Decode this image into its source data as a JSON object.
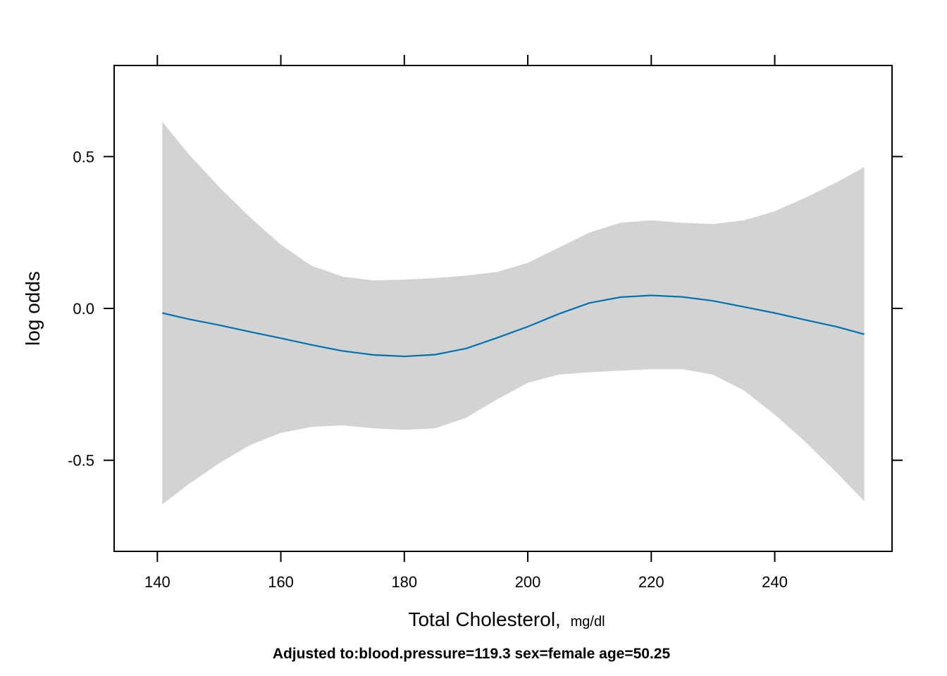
{
  "chart_data": {
    "type": "line",
    "xlabel": "Total Cholesterol,",
    "xlabel_unit": "mg/dl",
    "ylabel": "log odds",
    "footnote": "Adjusted to:blood.pressure=119.3 sex=female age=50.25",
    "xlim": [
      133,
      259
    ],
    "ylim": [
      -0.8,
      0.8
    ],
    "x_ticks": [
      140,
      160,
      180,
      200,
      220,
      240
    ],
    "y_ticks": [
      -0.5,
      0.0,
      0.5
    ],
    "x_tick_labels": [
      "140",
      "160",
      "180",
      "200",
      "220",
      "240"
    ],
    "y_tick_labels": [
      "-0.5",
      "0.0",
      "0.5"
    ],
    "grid": false,
    "series": [
      {
        "role": "fit",
        "color": "#0072B2",
        "x": [
          140.8,
          145,
          150,
          155,
          160,
          165,
          170,
          175,
          180,
          185,
          190,
          195,
          200,
          205,
          210,
          215,
          220,
          225,
          230,
          235,
          240,
          245,
          250,
          254.5
        ],
        "y": [
          -0.015,
          -0.035,
          -0.055,
          -0.077,
          -0.098,
          -0.12,
          -0.14,
          -0.153,
          -0.158,
          -0.152,
          -0.132,
          -0.097,
          -0.06,
          -0.018,
          0.018,
          0.037,
          0.043,
          0.038,
          0.025,
          0.005,
          -0.015,
          -0.038,
          -0.06,
          -0.085
        ]
      }
    ],
    "band": {
      "role": "confidence interval",
      "color": "#D3D3D3",
      "x": [
        140.8,
        145,
        150,
        155,
        160,
        165,
        170,
        175,
        180,
        185,
        190,
        195,
        200,
        205,
        210,
        215,
        220,
        225,
        230,
        235,
        240,
        245,
        250,
        254.5
      ],
      "upper": [
        0.615,
        0.51,
        0.4,
        0.3,
        0.21,
        0.14,
        0.105,
        0.092,
        0.095,
        0.1,
        0.108,
        0.12,
        0.15,
        0.2,
        0.25,
        0.282,
        0.29,
        0.282,
        0.278,
        0.29,
        0.32,
        0.365,
        0.415,
        0.465
      ],
      "lower": [
        -0.645,
        -0.58,
        -0.51,
        -0.45,
        -0.41,
        -0.39,
        -0.385,
        -0.395,
        -0.4,
        -0.395,
        -0.36,
        -0.3,
        -0.245,
        -0.218,
        -0.21,
        -0.205,
        -0.2,
        -0.2,
        -0.218,
        -0.27,
        -0.35,
        -0.44,
        -0.54,
        -0.635
      ]
    }
  }
}
